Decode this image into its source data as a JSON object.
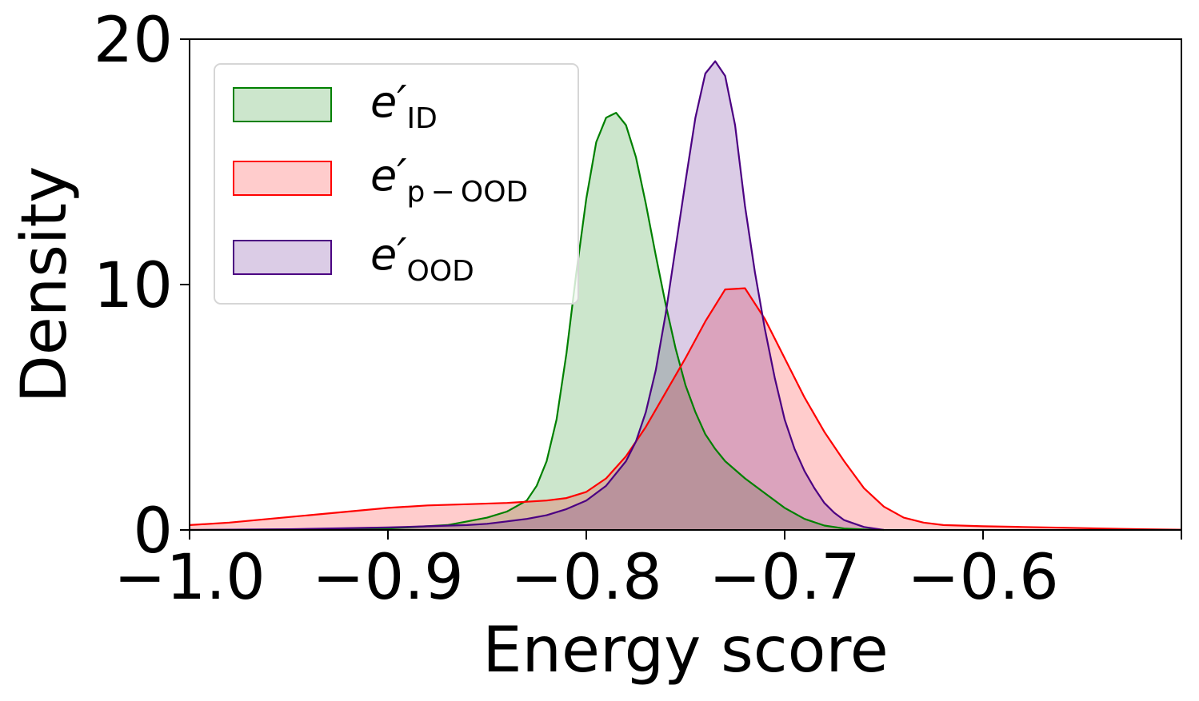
{
  "chart_data": {
    "type": "area",
    "title": "",
    "xlabel": "Energy score",
    "ylabel": "Density",
    "xlim": [
      -1.0,
      -0.5
    ],
    "ylim": [
      0,
      20
    ],
    "xticks": [
      -1.0,
      -0.9,
      -0.8,
      -0.7,
      -0.6
    ],
    "xtick_labels": [
      "−1.0",
      "−0.9",
      "−0.8",
      "−0.7",
      "−0.6"
    ],
    "yticks": [
      0,
      10,
      20
    ],
    "ytick_labels": [
      "0",
      "10",
      "20"
    ],
    "grid": false,
    "legend_position": "top-left",
    "series": [
      {
        "name": "e′",
        "subscript": "ID",
        "stroke": "#008000",
        "fill": "#008000",
        "fill_opacity": 0.2,
        "x": [
          -1.0,
          -0.95,
          -0.9,
          -0.87,
          -0.86,
          -0.85,
          -0.84,
          -0.83,
          -0.825,
          -0.82,
          -0.815,
          -0.81,
          -0.805,
          -0.8,
          -0.795,
          -0.79,
          -0.785,
          -0.78,
          -0.775,
          -0.77,
          -0.765,
          -0.76,
          -0.755,
          -0.75,
          -0.745,
          -0.74,
          -0.735,
          -0.73,
          -0.72,
          -0.71,
          -0.7,
          -0.69,
          -0.68,
          -0.67,
          -0.66,
          -0.65
        ],
        "values": [
          0.0,
          0.02,
          0.06,
          0.2,
          0.35,
          0.5,
          0.75,
          1.2,
          1.8,
          2.8,
          4.5,
          7.2,
          10.5,
          13.5,
          15.8,
          16.8,
          17.0,
          16.5,
          15.2,
          13.3,
          11.2,
          9.2,
          7.4,
          5.9,
          4.8,
          3.9,
          3.3,
          2.8,
          2.1,
          1.5,
          0.9,
          0.45,
          0.18,
          0.06,
          0.02,
          0.0
        ]
      },
      {
        "name": "e′",
        "subscript": "p − OOD",
        "stroke": "#ff0000",
        "fill": "#ff0000",
        "fill_opacity": 0.2,
        "x": [
          -1.0,
          -0.98,
          -0.96,
          -0.94,
          -0.92,
          -0.9,
          -0.88,
          -0.86,
          -0.84,
          -0.82,
          -0.81,
          -0.8,
          -0.79,
          -0.78,
          -0.77,
          -0.76,
          -0.75,
          -0.74,
          -0.73,
          -0.72,
          -0.71,
          -0.7,
          -0.69,
          -0.68,
          -0.67,
          -0.66,
          -0.65,
          -0.64,
          -0.63,
          -0.62,
          -0.6,
          -0.58,
          -0.56,
          -0.54,
          -0.52,
          -0.5
        ],
        "values": [
          0.2,
          0.3,
          0.45,
          0.6,
          0.75,
          0.9,
          1.0,
          1.05,
          1.1,
          1.2,
          1.3,
          1.55,
          2.1,
          3.0,
          4.2,
          5.6,
          7.0,
          8.5,
          9.8,
          9.85,
          8.6,
          7.0,
          5.4,
          4.0,
          2.8,
          1.7,
          0.95,
          0.5,
          0.3,
          0.2,
          0.15,
          0.12,
          0.09,
          0.06,
          0.03,
          0.01
        ]
      },
      {
        "name": "e′",
        "subscript": "OOD",
        "stroke": "#4b0082",
        "fill": "#4b0082",
        "fill_opacity": 0.2,
        "x": [
          -1.0,
          -0.95,
          -0.9,
          -0.88,
          -0.86,
          -0.85,
          -0.84,
          -0.83,
          -0.82,
          -0.81,
          -0.8,
          -0.79,
          -0.78,
          -0.775,
          -0.77,
          -0.765,
          -0.76,
          -0.755,
          -0.75,
          -0.745,
          -0.74,
          -0.735,
          -0.73,
          -0.725,
          -0.72,
          -0.715,
          -0.71,
          -0.705,
          -0.7,
          -0.695,
          -0.69,
          -0.685,
          -0.68,
          -0.675,
          -0.67,
          -0.66,
          -0.65
        ],
        "values": [
          0.0,
          0.03,
          0.1,
          0.15,
          0.2,
          0.25,
          0.35,
          0.45,
          0.6,
          0.85,
          1.2,
          1.8,
          2.8,
          3.6,
          4.8,
          6.5,
          8.8,
          11.5,
          14.2,
          16.8,
          18.6,
          19.1,
          18.5,
          16.5,
          13.2,
          10.5,
          8.2,
          6.2,
          4.5,
          3.3,
          2.4,
          1.7,
          1.1,
          0.7,
          0.4,
          0.12,
          0.0
        ]
      }
    ]
  }
}
